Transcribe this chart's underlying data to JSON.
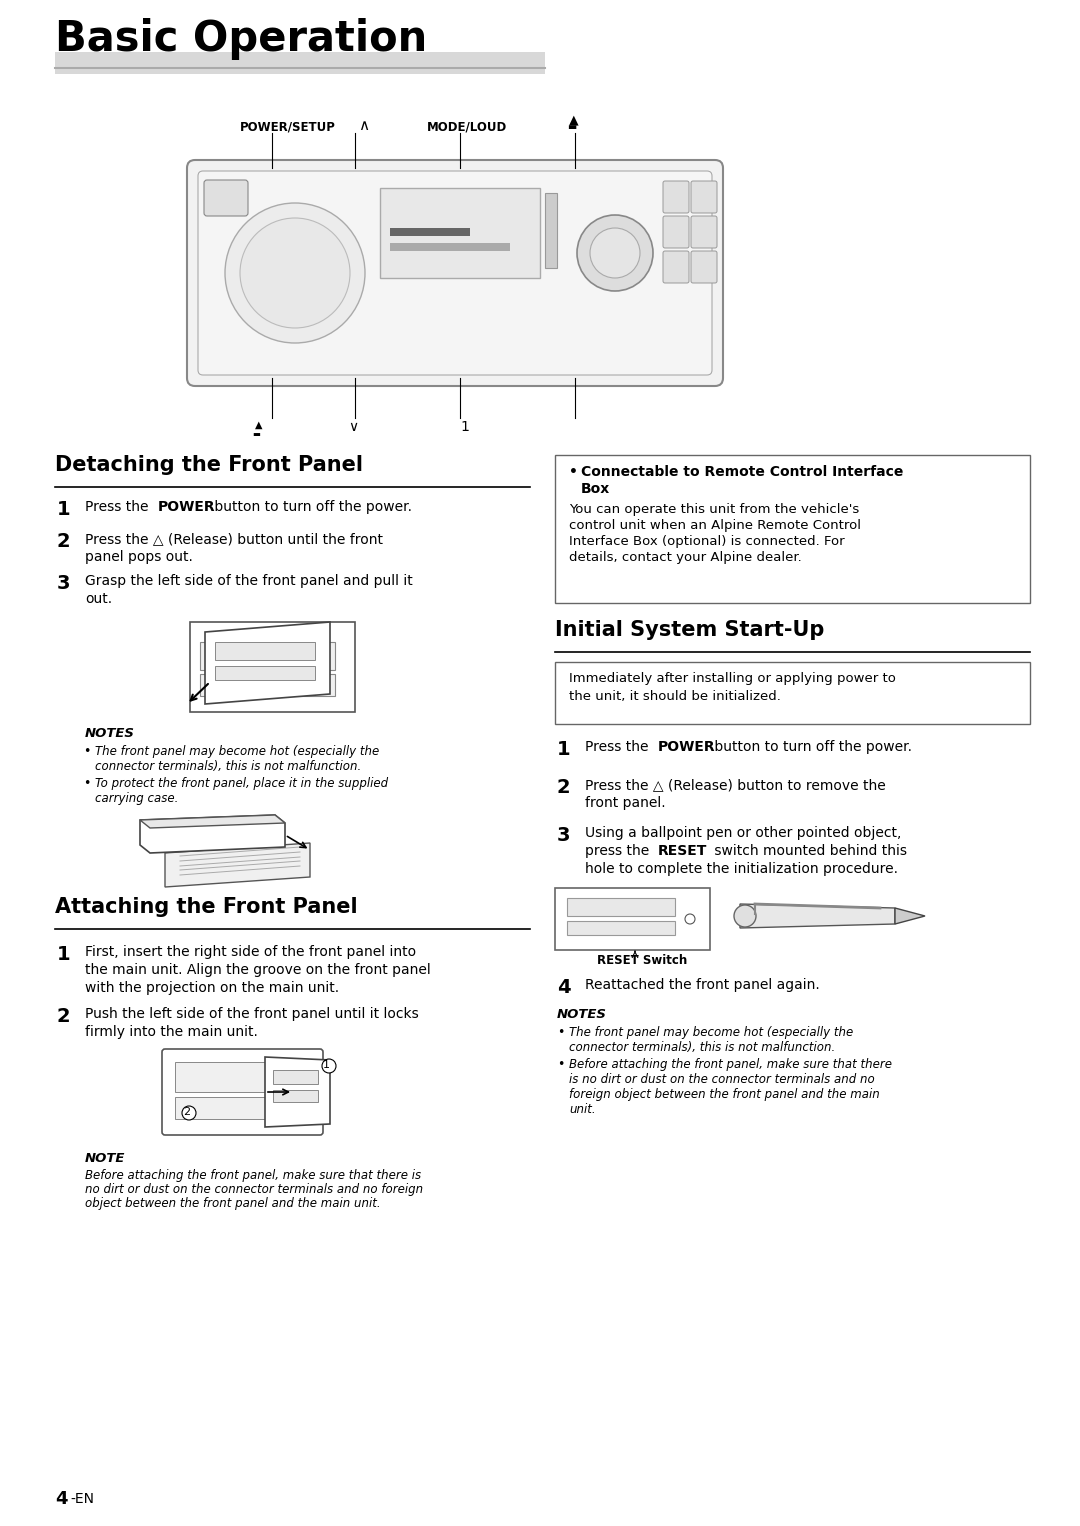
{
  "title": "Basic Operation",
  "bg_color": "#ffffff",
  "page_number": "4",
  "page_suffix": "-EN"
}
